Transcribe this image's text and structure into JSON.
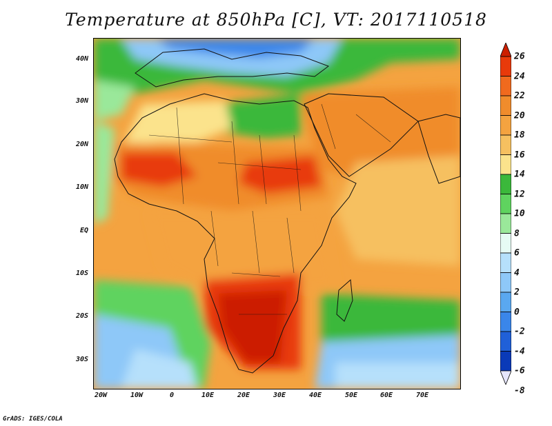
{
  "title": "Temperature at 850hPa [C], VT: 2017110518",
  "credit": "GrADS: IGES/COLA",
  "lat_ticks": [
    "40N",
    "30N",
    "20N",
    "10N",
    "EQ",
    "10S",
    "20S",
    "30S"
  ],
  "lon_ticks": [
    "20W",
    "10W",
    "0",
    "10E",
    "20E",
    "30E",
    "40E",
    "50E",
    "60E",
    "70E"
  ],
  "colorbar": {
    "levels": [
      "26",
      "24",
      "22",
      "20",
      "18",
      "16",
      "14",
      "12",
      "10",
      "8",
      "6",
      "4",
      "2",
      "0",
      "-2",
      "-4",
      "-6",
      "-8"
    ],
    "colors": [
      "#cc1f00",
      "#e83a0a",
      "#f06a1e",
      "#f08c2c",
      "#f4a340",
      "#f6c060",
      "#fbe38c",
      "#3bb83b",
      "#5fd35f",
      "#9ae89a",
      "#e6fbf4",
      "#b6e0fb",
      "#8ec8f8",
      "#5aa8f0",
      "#3a86ea",
      "#2060d8",
      "#0a3ab8",
      "#0b1a80"
    ]
  },
  "map": {
    "region": "Africa, Arabia and Indian Ocean",
    "valid_time": "2017110518",
    "level": "850hPa",
    "variable": "Temperature",
    "units": "C"
  }
}
